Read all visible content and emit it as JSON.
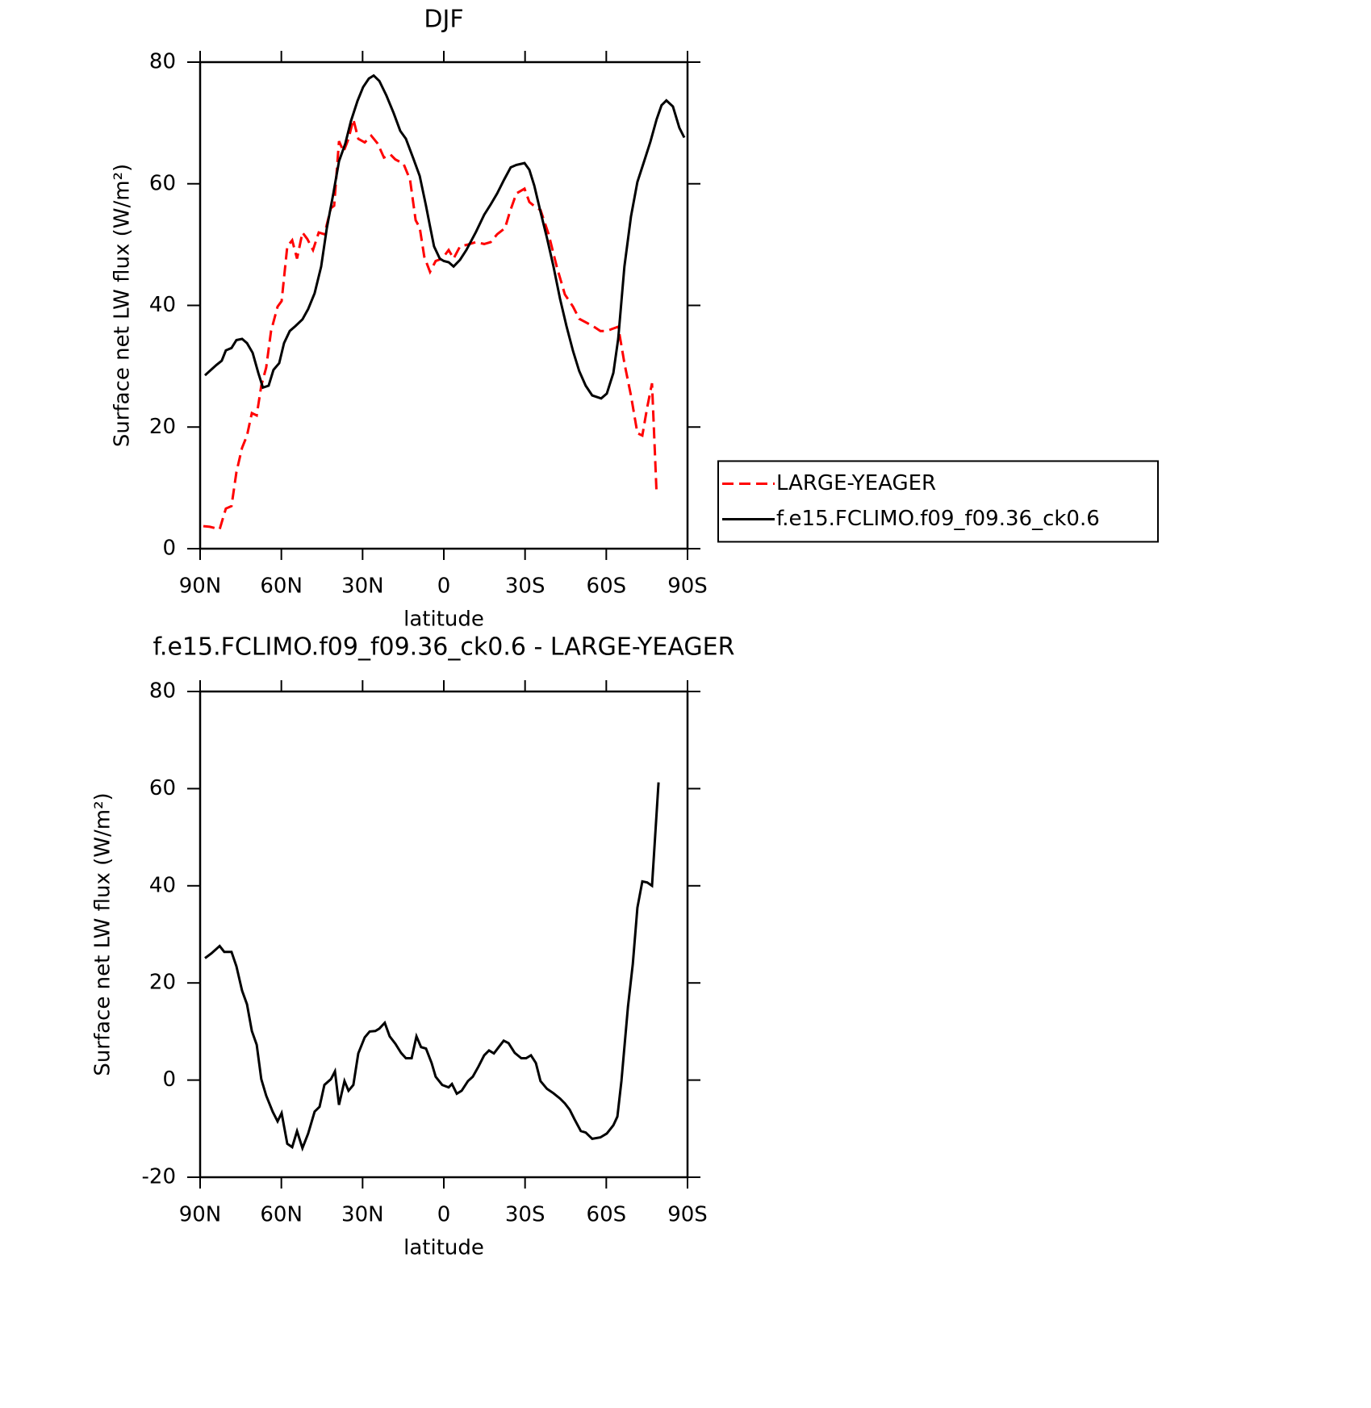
{
  "chart_data": [
    {
      "type": "line",
      "title": "DJF",
      "xlabel": "latitude",
      "ylabel": "Surface net LW flux (W/m²)",
      "xlim": [
        90,
        -90
      ],
      "xticks": [
        {
          "value": 90,
          "label": "90N"
        },
        {
          "value": 60,
          "label": "60N"
        },
        {
          "value": 30,
          "label": "30N"
        },
        0,
        {
          "value": -30,
          "label": "30S"
        },
        {
          "value": -60,
          "label": "60S"
        },
        {
          "value": -90,
          "label": "90S"
        }
      ],
      "ylim": [
        0,
        80
      ],
      "yticks": [
        0,
        20,
        40,
        60,
        80
      ],
      "legend": "right",
      "series": [
        {
          "name": "LARGE-YEAGER",
          "color": "#ff0000",
          "style": "dashed",
          "x": [
            88.8,
            86.4,
            82.8,
            80.5,
            78.4,
            76.6,
            74.5,
            72.7,
            70.9,
            69.1,
            67.4,
            65.6,
            63.8,
            61.4,
            59.9,
            57.8,
            56,
            54.2,
            52.2,
            50.4,
            48.3,
            46.2,
            44.1,
            41.7,
            40.5,
            38.7,
            37,
            35.2,
            33.4,
            31.6,
            29.2,
            26.8,
            24.4,
            22.1,
            19.7,
            17.9,
            14.9,
            12.5,
            10.4,
            8.9,
            7.2,
            5.1,
            3,
            0.6,
            -1.8,
            -3.6,
            -6,
            -8.9,
            -11.9,
            -14.9,
            -17.3,
            -19.7,
            -22.6,
            -24.4,
            -26.8,
            -29.8,
            -31.6,
            -34,
            -35.7,
            -38.7,
            -41.7,
            -44.7,
            -47.7,
            -50,
            -53,
            -55.4,
            -57.8,
            -60.2,
            -62,
            -64.4,
            -66.7,
            -69.1,
            -71.5,
            -73.3,
            -75.1,
            -76.9,
            -78.6
          ],
          "values": [
            3.7,
            3.6,
            3.2,
            6.6,
            7,
            12.6,
            16.6,
            18.6,
            22.3,
            21.9,
            26.8,
            29.8,
            35.8,
            39.8,
            40.7,
            49.7,
            50.7,
            47.7,
            52,
            50.9,
            49.1,
            52,
            51.7,
            56,
            56.4,
            67,
            65.3,
            67.4,
            70.6,
            67.4,
            66.8,
            67.9,
            66.6,
            64.3,
            64.8,
            64,
            63.3,
            60.7,
            54,
            52.8,
            48,
            45.5,
            47.3,
            47.7,
            49.1,
            47.7,
            49.7,
            50,
            50.4,
            50.1,
            50.4,
            51.7,
            52.7,
            55.4,
            58.4,
            59.2,
            57,
            56.1,
            55.7,
            51.7,
            46.4,
            41.8,
            39.8,
            37.8,
            37.1,
            36.5,
            35.8,
            35.8,
            36.1,
            36.5,
            30.5,
            25.2,
            19,
            18.6,
            23.2,
            27.2,
            9
          ]
        },
        {
          "name": "f.e15.FCLIMO.f09_f09.36_ck0.6",
          "color": "#000000",
          "style": "solid",
          "x": [
            88.2,
            84,
            82,
            80.5,
            78.4,
            76.6,
            74.5,
            72.7,
            70.6,
            68.5,
            66.8,
            64.7,
            62.9,
            60.8,
            59,
            56.9,
            54.8,
            52.2,
            50.1,
            47.7,
            45.3,
            43.2,
            40.8,
            38.7,
            36.4,
            34.3,
            31.9,
            29.8,
            27.7,
            25.9,
            23.8,
            21.2,
            18.5,
            16.1,
            14,
            11.3,
            8.9,
            6.6,
            5.1,
            3.6,
            1.5,
            0,
            -1.8,
            -3.6,
            -6,
            -8.3,
            -11.9,
            -14.9,
            -17.3,
            -19.7,
            -22.3,
            -24.7,
            -26.8,
            -29.8,
            -31.6,
            -33.4,
            -35.7,
            -38.1,
            -40.5,
            -42.9,
            -45.3,
            -47.7,
            -50,
            -52.4,
            -54.8,
            -58.1,
            -60.2,
            -62.6,
            -64.4,
            -66.7,
            -69.1,
            -71.5,
            -73.9,
            -76.3,
            -78.6,
            -80.4,
            -82.2,
            -84.6,
            -87,
            -88.8
          ],
          "values": [
            28.5,
            30.2,
            30.9,
            32.6,
            33,
            34.3,
            34.5,
            33.8,
            32.2,
            28.9,
            26.5,
            26.8,
            29.4,
            30.5,
            33.8,
            35.8,
            36.6,
            37.7,
            39.4,
            42,
            46.4,
            52.7,
            58.4,
            63.7,
            66.6,
            70.3,
            73.6,
            75.9,
            77.3,
            77.8,
            76.9,
            74.5,
            71.6,
            68.7,
            67.4,
            64.2,
            61.3,
            56.4,
            53,
            49.7,
            47.7,
            47.3,
            47.1,
            46.4,
            47.5,
            49.1,
            52.1,
            54.9,
            56.6,
            58.4,
            60.7,
            62.7,
            63.1,
            63.4,
            62.3,
            59.7,
            55.4,
            51.1,
            46.4,
            41.1,
            36.6,
            32.5,
            29.2,
            26.8,
            25.2,
            24.7,
            25.5,
            28.9,
            34.5,
            46.4,
            54.6,
            60.3,
            63.6,
            66.9,
            70.6,
            72.9,
            73.7,
            72.7,
            69.2,
            67.6
          ]
        }
      ]
    },
    {
      "type": "line",
      "title": "f.e15.FCLIMO.f09_f09.36_ck0.6 - LARGE-YEAGER",
      "xlabel": "latitude",
      "ylabel": "Surface net LW flux (W/m²)",
      "xlim": [
        90,
        -90
      ],
      "xticks": [
        {
          "value": 90,
          "label": "90N"
        },
        {
          "value": 60,
          "label": "60N"
        },
        {
          "value": 30,
          "label": "30N"
        },
        0,
        {
          "value": -30,
          "label": "30S"
        },
        {
          "value": -60,
          "label": "60S"
        },
        {
          "value": -90,
          "label": "90S"
        }
      ],
      "ylim": [
        -20,
        80
      ],
      "yticks": [
        -20,
        0,
        20,
        40,
        60,
        80
      ],
      "series": [
        {
          "color": "#000000",
          "style": "solid",
          "x": [
            88.2,
            85.8,
            82.8,
            81.1,
            78.4,
            76.6,
            74.5,
            72.7,
            70.9,
            69.1,
            67.4,
            65.6,
            63.2,
            61.4,
            59.9,
            57.8,
            56,
            54.2,
            52.2,
            50.1,
            47.7,
            45.9,
            44.1,
            41.7,
            40.2,
            38.7,
            36.7,
            35.2,
            33.4,
            31.6,
            29.2,
            27.4,
            25.3,
            23.8,
            21.8,
            20,
            17.9,
            15.8,
            14,
            11.9,
            10.1,
            8.4,
            6.6,
            4.5,
            3,
            0.6,
            -1.8,
            -3,
            -4.8,
            -6.6,
            -8.9,
            -10.7,
            -12.8,
            -14.9,
            -16.7,
            -18.5,
            -20.3,
            -22.1,
            -23.9,
            -26.2,
            -28.6,
            -30.4,
            -32.2,
            -34,
            -35.7,
            -38.1,
            -40.5,
            -42.9,
            -44.7,
            -46.5,
            -48.3,
            -50.6,
            -52.4,
            -54.8,
            -57.8,
            -60.2,
            -62.6,
            -64.1,
            -65.6,
            -68,
            -69.8,
            -71.5,
            -73.3,
            -75.1,
            -76.9,
            -79.3
          ],
          "values": [
            25.1,
            26.1,
            27.6,
            26.4,
            26.4,
            23.4,
            18.4,
            15.6,
            10.1,
            7.3,
            0.2,
            -3.2,
            -6.5,
            -8.5,
            -6.8,
            -13.1,
            -13.8,
            -10.5,
            -14,
            -11,
            -6.5,
            -5.5,
            -1,
            0.2,
            1.8,
            -5.1,
            -0.2,
            -2.2,
            -1,
            5.5,
            8.8,
            10,
            10.1,
            10.6,
            11.8,
            9,
            7.5,
            5.6,
            4.5,
            4.5,
            9,
            6.8,
            6.5,
            3.5,
            0.7,
            -1,
            -1.5,
            -0.8,
            -2.8,
            -2.2,
            -0.2,
            0.7,
            2.8,
            5.1,
            6.1,
            5.5,
            6.8,
            8.1,
            7.6,
            5.6,
            4.5,
            4.5,
            5.1,
            3.5,
            -0.2,
            -1.8,
            -2.7,
            -3.8,
            -4.8,
            -6.1,
            -8.1,
            -10.5,
            -10.8,
            -12.1,
            -11.8,
            -11,
            -9.3,
            -7.5,
            -0.2,
            15.1,
            23.9,
            35.5,
            40.9,
            40.7,
            40,
            61.3
          ]
        }
      ]
    }
  ]
}
